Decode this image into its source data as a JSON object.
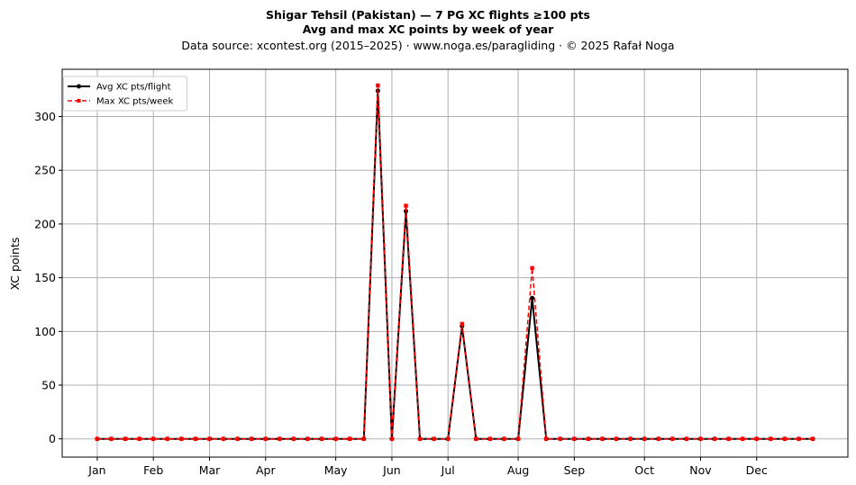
{
  "chart_data": {
    "type": "line",
    "title_line1": "Shigar Tehsil (Pakistan)  —  7 PG XC flights ≥100 pts",
    "title_line2": "Avg and max XC points by week of year",
    "subtitle": "Data source: xcontest.org (2015–2025)  ·  www.noga.es/paragliding  ·  © 2025 Rafał Noga",
    "xlabel": "",
    "ylabel": "XC points",
    "xlim": [
      -2.5,
      53.5
    ],
    "ylim": [
      -17,
      344
    ],
    "grid": true,
    "legend_position": "top-left",
    "month_ticks": [
      {
        "label": "Jan",
        "x": 0
      },
      {
        "label": "Feb",
        "x": 4
      },
      {
        "label": "Mar",
        "x": 8
      },
      {
        "label": "Apr",
        "x": 12
      },
      {
        "label": "May",
        "x": 17
      },
      {
        "label": "Jun",
        "x": 21
      },
      {
        "label": "Jul",
        "x": 25
      },
      {
        "label": "Aug",
        "x": 30
      },
      {
        "label": "Sep",
        "x": 34
      },
      {
        "label": "Oct",
        "x": 39
      },
      {
        "label": "Nov",
        "x": 43
      },
      {
        "label": "Dec",
        "x": 47
      }
    ],
    "y_ticks": [
      0,
      50,
      100,
      150,
      200,
      250,
      300
    ],
    "x": [
      0,
      1,
      2,
      3,
      4,
      5,
      6,
      7,
      8,
      9,
      10,
      11,
      12,
      13,
      14,
      15,
      16,
      17,
      18,
      19,
      20,
      21,
      22,
      23,
      24,
      25,
      26,
      27,
      28,
      29,
      30,
      31,
      32,
      33,
      34,
      35,
      36,
      37,
      38,
      39,
      40,
      41,
      42,
      43,
      44,
      45,
      46,
      47,
      48,
      49,
      50,
      51
    ],
    "series": [
      {
        "name": "Avg XC pts/flight",
        "color": "#000000",
        "style": "solid",
        "marker": "circle",
        "values": [
          0,
          0,
          0,
          0,
          0,
          0,
          0,
          0,
          0,
          0,
          0,
          0,
          0,
          0,
          0,
          0,
          0,
          0,
          0,
          0,
          324,
          0,
          212,
          0,
          0,
          0,
          105,
          0,
          0,
          0,
          0,
          131,
          0,
          0,
          0,
          0,
          0,
          0,
          0,
          0,
          0,
          0,
          0,
          0,
          0,
          0,
          0,
          0,
          0,
          0,
          0,
          0
        ]
      },
      {
        "name": "Max XC pts/week",
        "color": "#ff0000",
        "style": "dashed",
        "marker": "square",
        "values": [
          0,
          0,
          0,
          0,
          0,
          0,
          0,
          0,
          0,
          0,
          0,
          0,
          0,
          0,
          0,
          0,
          0,
          0,
          0,
          0,
          329,
          0,
          217,
          0,
          0,
          0,
          107,
          0,
          0,
          0,
          0,
          159,
          0,
          0,
          0,
          0,
          0,
          0,
          0,
          0,
          0,
          0,
          0,
          0,
          0,
          0,
          0,
          0,
          0,
          0,
          0,
          0
        ]
      }
    ]
  }
}
